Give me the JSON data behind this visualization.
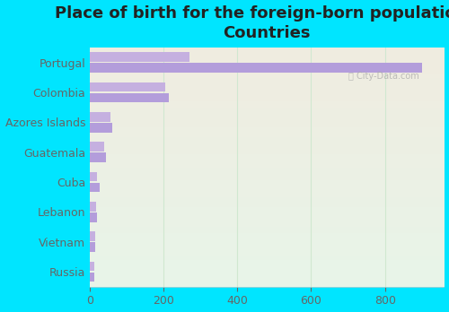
{
  "title": "Place of birth for the foreign-born population -\nCountries",
  "categories": [
    "Portugal",
    "Colombia",
    "Azores Islands",
    "Guatemala",
    "Cuba",
    "Lebanon",
    "Vietnam",
    "Russia"
  ],
  "values_top": [
    900,
    215,
    62,
    44,
    27,
    19,
    16,
    13
  ],
  "values_bottom": [
    270,
    205,
    55,
    38,
    20,
    17,
    15,
    12
  ],
  "bar_color_top": "#b39ddb",
  "bar_color_bottom": "#c5b0e0",
  "background_outer": "#00e5ff",
  "bg_top_color": "#e8f5e9",
  "bg_bottom_color": "#f0ece0",
  "grid_color": "#d0e8d0",
  "xlim": [
    0,
    960
  ],
  "xticks": [
    0,
    200,
    400,
    600,
    800
  ],
  "title_fontsize": 13,
  "label_fontsize": 9,
  "tick_fontsize": 9,
  "bar_height": 0.32
}
